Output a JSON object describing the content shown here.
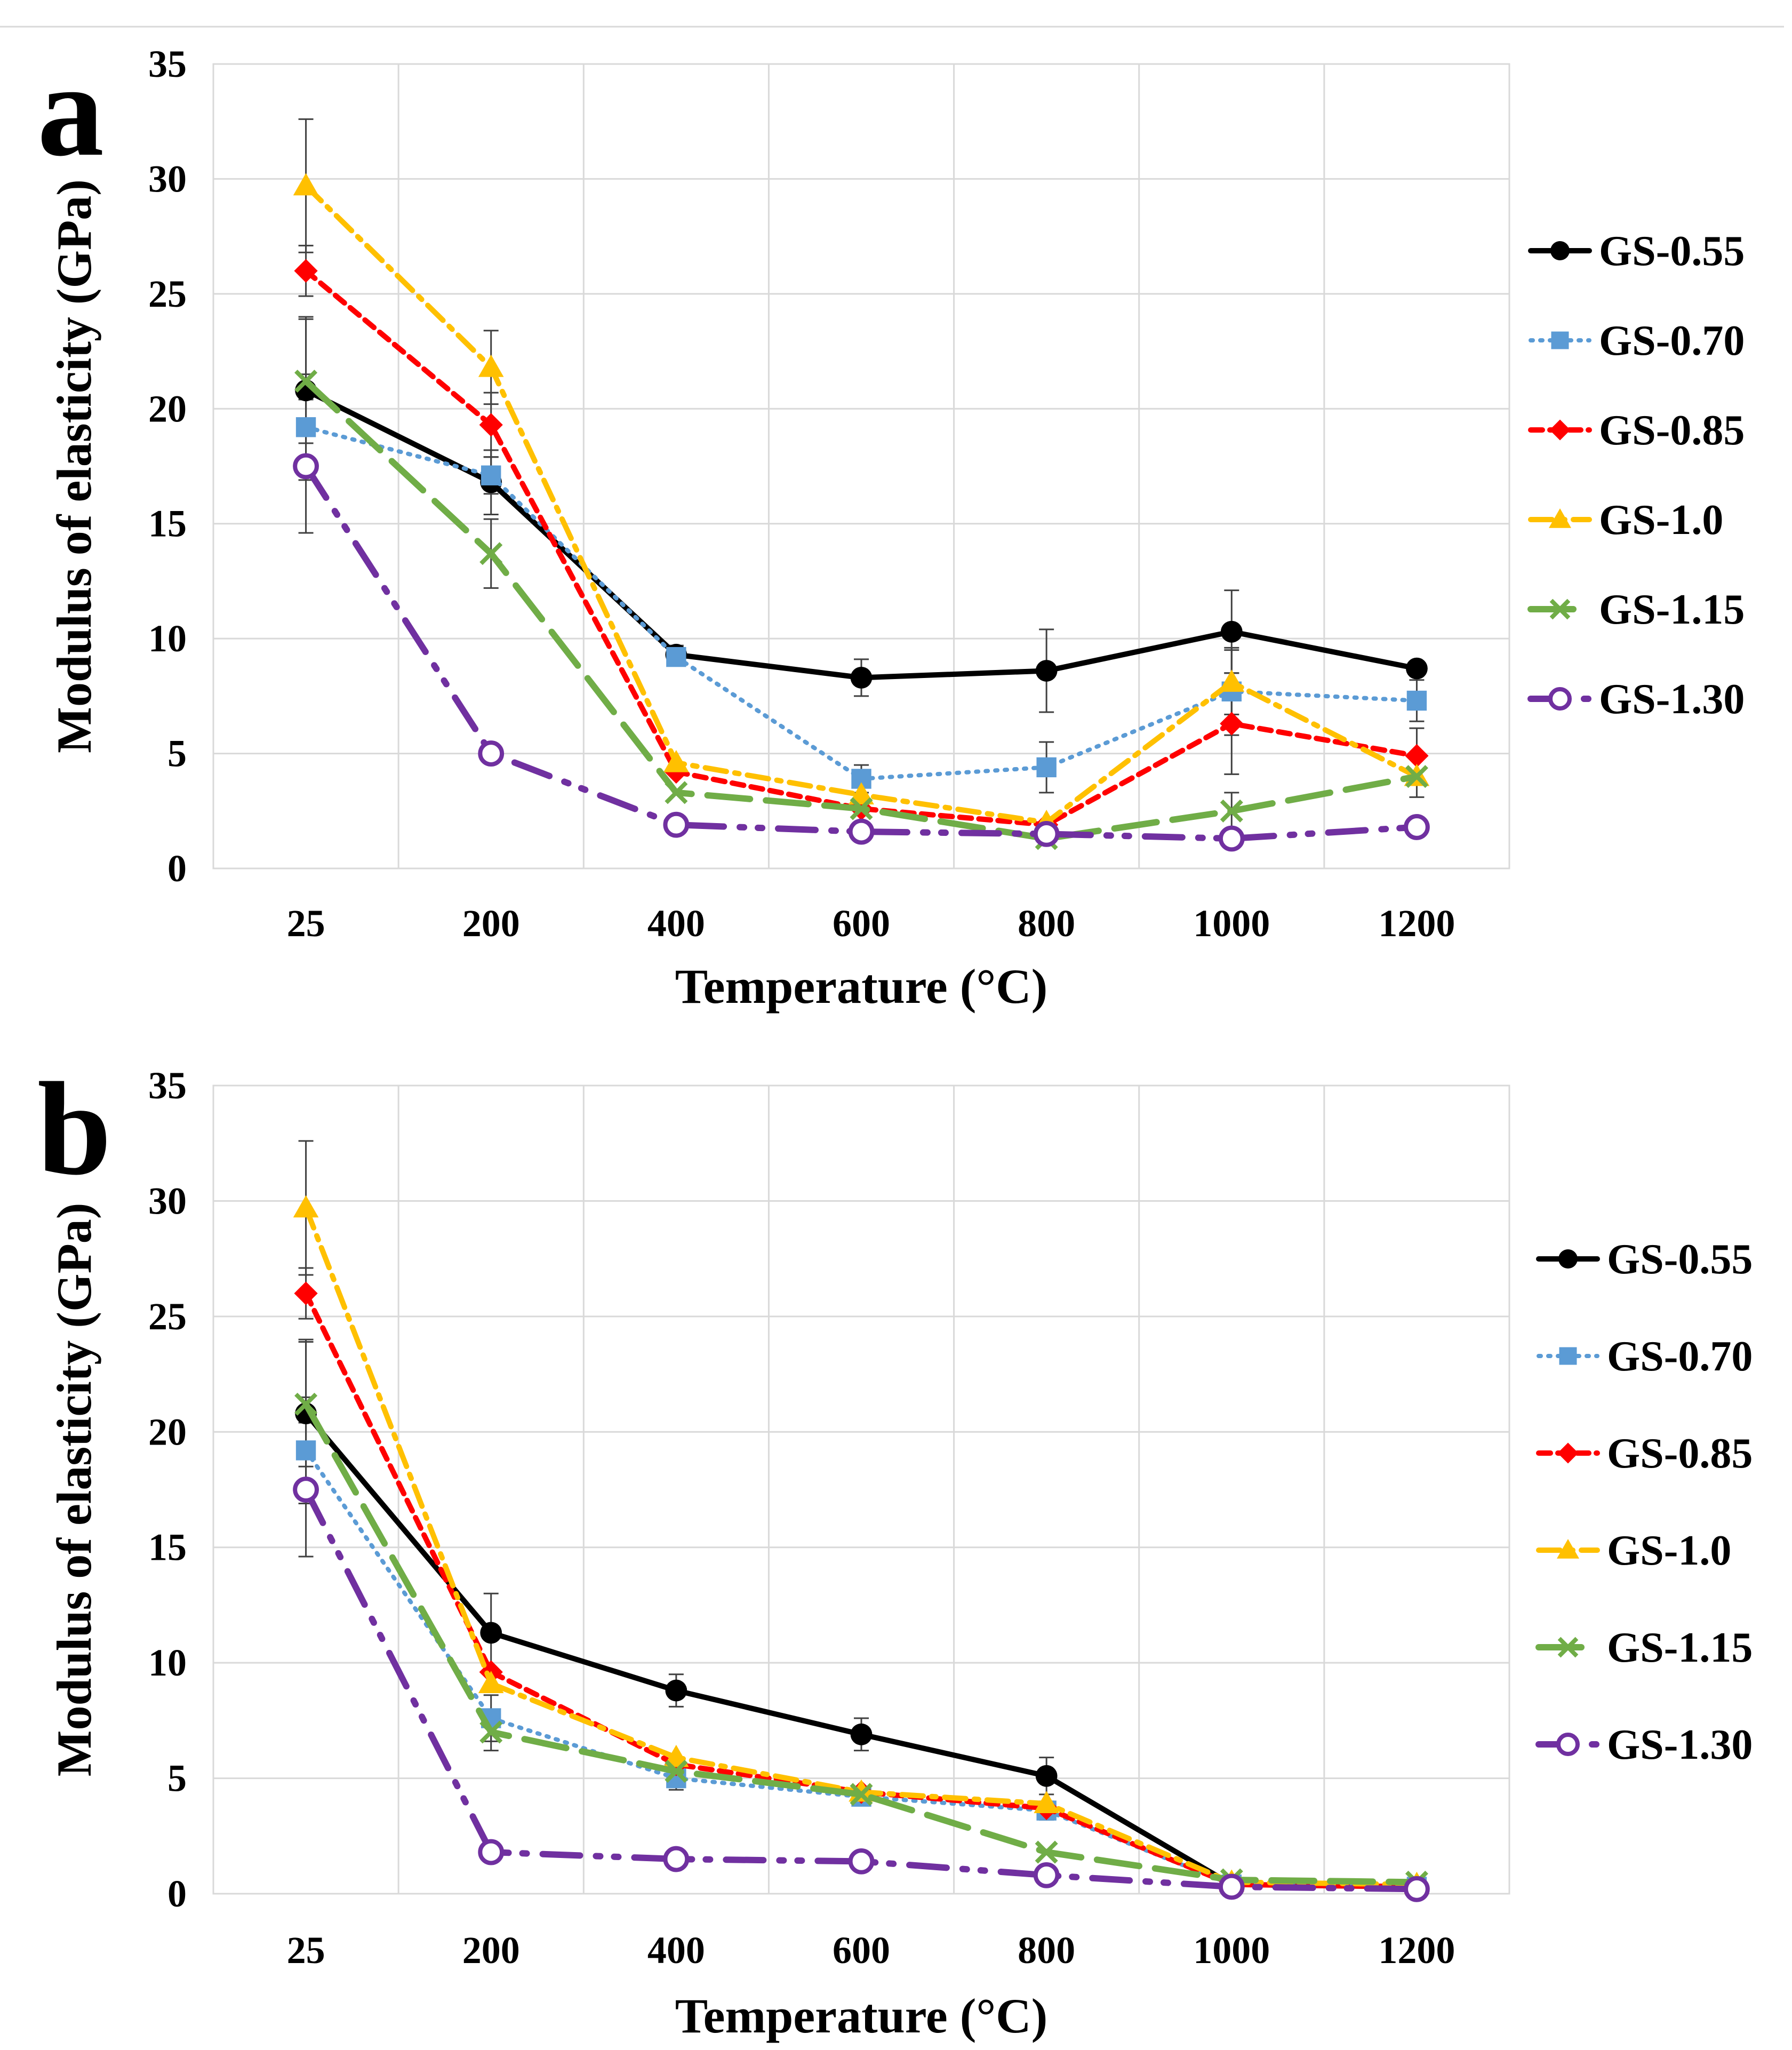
{
  "colors": {
    "GS-0.55": "#000000",
    "GS-0.70": "#5B9BD5",
    "GS-0.85": "#FF0000",
    "GS-1.0": "#FFC000",
    "GS-1.15": "#70AD47",
    "GS-1.30": "#7030A0",
    "grid": "#D9D9D9",
    "errorbar": "#404040"
  },
  "chart_data": [
    {
      "panel": "a",
      "type": "line",
      "categories": [
        "25",
        "200",
        "400",
        "600",
        "800",
        "1000",
        "1200"
      ],
      "xlabel": "Temperature (°C)",
      "ylabel": "Modulus of elasticity  (GPa)",
      "ylim": [
        0,
        35
      ],
      "yticks": [
        0,
        5,
        10,
        15,
        20,
        25,
        30,
        35
      ],
      "grid": true,
      "legend_position": "right",
      "series": [
        {
          "name": "GS-0.55",
          "marker": "circle",
          "dash": "solid",
          "values": [
            20.8,
            16.8,
            9.3,
            8.3,
            8.6,
            10.3,
            8.7
          ],
          "errors": [
            3.2,
            1.4,
            0.4,
            0.8,
            1.8,
            1.8,
            0
          ]
        },
        {
          "name": "GS-0.70",
          "marker": "square",
          "dash": "dotted",
          "values": [
            19.2,
            17.1,
            9.2,
            3.9,
            4.4,
            7.7,
            7.3
          ],
          "errors": [
            2.3,
            0.8,
            0,
            0.6,
            1.1,
            1.9,
            0.9
          ]
        },
        {
          "name": "GS-0.85",
          "marker": "diamond",
          "dash": "dashed",
          "values": [
            26.0,
            19.3,
            4.2,
            2.6,
            1.9,
            6.3,
            4.9
          ],
          "errors": [
            1.1,
            1.4,
            0,
            0,
            0,
            2.2,
            1.2
          ]
        },
        {
          "name": "GS-1.0",
          "marker": "triangle",
          "dash": "dashdot",
          "values": [
            29.7,
            21.8,
            4.6,
            3.2,
            2.0,
            8.1,
            4.0
          ],
          "errors": [
            2.9,
            1.6,
            0,
            0,
            0,
            1.4,
            0.9
          ]
        },
        {
          "name": "GS-1.15",
          "marker": "x",
          "dash": "longdash",
          "values": [
            21.2,
            13.7,
            3.3,
            2.6,
            1.3,
            2.5,
            4.0
          ],
          "errors": [
            2.7,
            1.5,
            0,
            0,
            0,
            0.8,
            0
          ]
        },
        {
          "name": "GS-1.30",
          "marker": "opencircle",
          "dash": "longdashdotdot",
          "values": [
            17.5,
            5.0,
            1.9,
            1.6,
            1.5,
            1.3,
            1.8
          ],
          "errors": [
            2.9,
            0,
            0,
            0,
            0,
            0,
            0
          ]
        }
      ]
    },
    {
      "panel": "b",
      "type": "line",
      "categories": [
        "25",
        "200",
        "400",
        "600",
        "800",
        "1000",
        "1200"
      ],
      "xlabel": "Temperature (°C)",
      "ylabel": "Modulus of elasticity  (GPa)",
      "ylim": [
        0,
        35
      ],
      "yticks": [
        0,
        5,
        10,
        15,
        20,
        25,
        30,
        35
      ],
      "grid": true,
      "legend_position": "right",
      "series": [
        {
          "name": "GS-0.55",
          "marker": "circle",
          "dash": "solid",
          "values": [
            20.8,
            11.3,
            8.8,
            6.9,
            5.1,
            0.4,
            0.3
          ],
          "errors": [
            3.2,
            1.7,
            0.7,
            0.7,
            0.8,
            0,
            0
          ]
        },
        {
          "name": "GS-0.70",
          "marker": "square",
          "dash": "dotted",
          "values": [
            19.2,
            7.6,
            5.0,
            4.2,
            3.6,
            0.4,
            0.3
          ],
          "errors": [
            2.3,
            1.0,
            0.5,
            0.3,
            0.4,
            0,
            0
          ]
        },
        {
          "name": "GS-0.85",
          "marker": "diamond",
          "dash": "dashed",
          "values": [
            26.0,
            9.6,
            5.6,
            4.4,
            3.7,
            0.4,
            0.3
          ],
          "errors": [
            1.1,
            0,
            0,
            0,
            0,
            0,
            0
          ]
        },
        {
          "name": "GS-1.0",
          "marker": "triangle",
          "dash": "dashdot",
          "values": [
            29.7,
            9.1,
            5.9,
            4.4,
            3.9,
            0.5,
            0.4
          ],
          "errors": [
            2.9,
            0,
            0,
            0,
            0,
            0,
            0
          ]
        },
        {
          "name": "GS-1.15",
          "marker": "x",
          "dash": "longdash",
          "values": [
            21.2,
            7.0,
            5.3,
            4.3,
            1.8,
            0.6,
            0.5
          ],
          "errors": [
            2.7,
            0.8,
            0,
            0,
            0,
            0,
            0
          ]
        },
        {
          "name": "GS-1.30",
          "marker": "opencircle",
          "dash": "longdashdotdot",
          "values": [
            17.5,
            1.8,
            1.5,
            1.4,
            0.8,
            0.3,
            0.2
          ],
          "errors": [
            2.9,
            0,
            0,
            0,
            0,
            0,
            0
          ]
        }
      ]
    }
  ]
}
